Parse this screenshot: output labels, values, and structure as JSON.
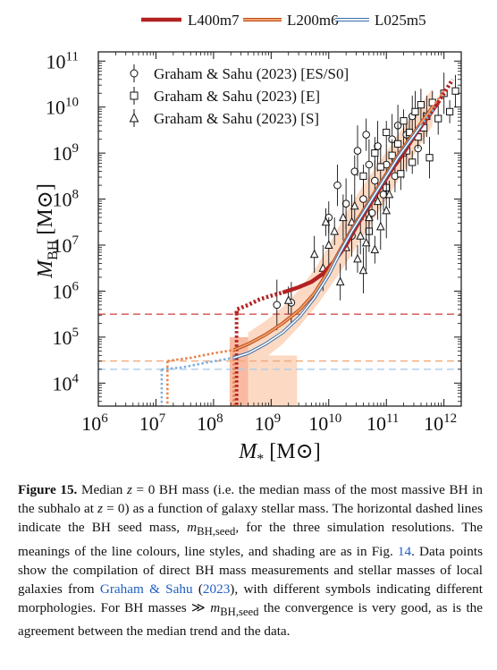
{
  "chart_data": {
    "type": "line",
    "xlabel_main": "M",
    "xlabel_sub": "*",
    "xlabel_unit": "[M",
    "xlabel_unit_end": "]",
    "ylabel_main": "M",
    "ylabel_sub": "BH",
    "ylabel_unit": "[M",
    "ylabel_unit_end": "]",
    "x_log": true,
    "y_log": true,
    "xlim": [
      6,
      12.3
    ],
    "ylim": [
      3.5,
      11.2
    ],
    "x_ticks": [
      6,
      7,
      8,
      9,
      10,
      11,
      12
    ],
    "y_ticks": [
      4,
      5,
      6,
      7,
      8,
      9,
      10,
      11
    ],
    "legend_top": [
      {
        "name": "L400m7",
        "color": "#b22222"
      },
      {
        "name": "L200m6",
        "color": "#e8824a"
      },
      {
        "name": "L025m5",
        "color": "#7fb0dc"
      }
    ],
    "legend_obs": [
      "Graham & Sahu (2023) [ES/S0]",
      "Graham & Sahu (2023) [E]",
      "Graham & Sahu (2023) [S]"
    ],
    "seed_masses_log": {
      "L400m7": 5.5,
      "L200m6": 4.48,
      "L025m5": 4.3
    },
    "series": [
      {
        "name": "L400m7",
        "color": "#b22222",
        "dotted": [
          [
            8.4,
            5.52
          ],
          [
            8.4,
            5.6
          ],
          [
            8.6,
            5.7
          ],
          [
            8.8,
            5.82
          ],
          [
            9.0,
            5.9
          ],
          [
            9.2,
            5.97
          ]
        ],
        "solid": [
          [
            9.2,
            5.97
          ],
          [
            9.45,
            6.07
          ],
          [
            9.7,
            6.2
          ],
          [
            9.9,
            6.38
          ],
          [
            10.1,
            6.65
          ],
          [
            10.3,
            7.0
          ],
          [
            10.5,
            7.45
          ],
          [
            10.7,
            7.85
          ],
          [
            10.9,
            8.25
          ],
          [
            11.1,
            8.65
          ],
          [
            11.3,
            9.0
          ],
          [
            11.5,
            9.4
          ],
          [
            11.7,
            9.75
          ],
          [
            11.9,
            10.1
          ]
        ],
        "dotted_end": [
          [
            11.9,
            10.1
          ],
          [
            12.05,
            10.4
          ],
          [
            12.15,
            10.6
          ]
        ]
      },
      {
        "name": "L200m6",
        "color": "#e8824a",
        "dotted": [
          [
            7.2,
            4.48
          ],
          [
            7.6,
            4.55
          ],
          [
            8.0,
            4.65
          ],
          [
            8.35,
            4.72
          ]
        ],
        "solid": [
          [
            8.35,
            4.72
          ],
          [
            8.6,
            4.85
          ],
          [
            8.9,
            5.05
          ],
          [
            9.2,
            5.3
          ],
          [
            9.5,
            5.6
          ],
          [
            9.75,
            5.95
          ],
          [
            10.0,
            6.45
          ],
          [
            10.2,
            6.9
          ],
          [
            10.4,
            7.35
          ],
          [
            10.6,
            7.75
          ],
          [
            10.8,
            8.15
          ],
          [
            11.0,
            8.55
          ],
          [
            11.2,
            8.95
          ],
          [
            11.4,
            9.3
          ],
          [
            11.6,
            9.65
          ],
          [
            11.8,
            10.0
          ]
        ],
        "dotted_end": [
          [
            11.8,
            10.0
          ],
          [
            12.0,
            10.35
          ]
        ]
      },
      {
        "name": "L025m5",
        "color": "#7fb0dc",
        "dotted": [
          [
            7.1,
            4.3
          ],
          [
            7.45,
            4.34
          ],
          [
            7.9,
            4.45
          ],
          [
            8.35,
            4.55
          ]
        ],
        "solid": [
          [
            8.35,
            4.55
          ],
          [
            8.6,
            4.65
          ],
          [
            8.9,
            4.85
          ],
          [
            9.2,
            5.1
          ],
          [
            9.5,
            5.45
          ],
          [
            9.75,
            5.85
          ],
          [
            10.0,
            6.35
          ],
          [
            10.2,
            6.85
          ],
          [
            10.4,
            7.3
          ],
          [
            10.6,
            7.7
          ],
          [
            10.8,
            8.1
          ],
          [
            11.0,
            8.5
          ],
          [
            11.2,
            8.9
          ],
          [
            11.4,
            9.25
          ],
          [
            11.6,
            9.6
          ]
        ],
        "dotted_end": [
          [
            11.6,
            9.6
          ],
          [
            11.85,
            10.0
          ]
        ]
      }
    ],
    "shaded_band": {
      "upper": [
        [
          8.6,
          5.1
        ],
        [
          8.9,
          5.35
        ],
        [
          9.2,
          5.65
        ],
        [
          9.5,
          6.05
        ],
        [
          9.8,
          6.55
        ],
        [
          10.0,
          7.0
        ],
        [
          10.3,
          7.7
        ],
        [
          10.6,
          8.3
        ],
        [
          10.9,
          8.85
        ],
        [
          11.2,
          9.4
        ],
        [
          11.5,
          9.9
        ],
        [
          11.8,
          10.4
        ]
      ],
      "lower": [
        [
          11.8,
          9.6
        ],
        [
          11.5,
          9.0
        ],
        [
          11.2,
          8.4
        ],
        [
          10.9,
          7.8
        ],
        [
          10.6,
          7.2
        ],
        [
          10.3,
          6.6
        ],
        [
          10.0,
          6.05
        ],
        [
          9.8,
          5.7
        ],
        [
          9.5,
          5.25
        ],
        [
          9.2,
          4.85
        ],
        [
          8.9,
          4.55
        ],
        [
          8.6,
          4.35
        ]
      ],
      "dark_box": {
        "x": [
          8.28,
          8.6
        ],
        "y": [
          3.5,
          5.0
        ]
      },
      "light_box": {
        "x": [
          8.6,
          9.45
        ],
        "y": [
          3.5,
          4.6
        ]
      }
    },
    "observations": {
      "ES_S0": [
        [
          10.0,
          7.6
        ],
        [
          10.15,
          8.3
        ],
        [
          10.3,
          7.9
        ],
        [
          10.45,
          8.6
        ],
        [
          10.6,
          8.0
        ],
        [
          10.7,
          8.75
        ],
        [
          10.75,
          7.7
        ],
        [
          10.8,
          8.4
        ],
        [
          10.85,
          9.15
        ],
        [
          10.95,
          8.1
        ],
        [
          11.0,
          8.75
        ],
        [
          11.1,
          9.3
        ],
        [
          11.15,
          8.5
        ],
        [
          11.2,
          9.6
        ],
        [
          11.3,
          9.0
        ],
        [
          11.35,
          9.4
        ],
        [
          11.45,
          9.8
        ],
        [
          10.5,
          9.05
        ],
        [
          10.65,
          9.4
        ],
        [
          9.35,
          5.75
        ],
        [
          9.1,
          5.7
        ],
        [
          11.55,
          9.1
        ],
        [
          10.4,
          7.2
        ]
      ],
      "E": [
        [
          10.6,
          8.5
        ],
        [
          10.8,
          9.0
        ],
        [
          10.9,
          8.7
        ],
        [
          11.0,
          9.45
        ],
        [
          11.1,
          8.95
        ],
        [
          11.2,
          9.2
        ],
        [
          11.3,
          9.7
        ],
        [
          11.4,
          9.45
        ],
        [
          11.5,
          9.9
        ],
        [
          11.55,
          9.35
        ],
        [
          11.6,
          10.05
        ],
        [
          11.7,
          9.8
        ],
        [
          11.8,
          10.1
        ],
        [
          11.9,
          9.75
        ],
        [
          12.0,
          10.3
        ],
        [
          12.1,
          9.9
        ],
        [
          12.2,
          10.35
        ],
        [
          11.35,
          9.05
        ],
        [
          11.45,
          8.8
        ],
        [
          11.65,
          9.55
        ],
        [
          10.7,
          7.3
        ],
        [
          11.0,
          8.25
        ],
        [
          11.25,
          8.55
        ],
        [
          11.75,
          8.9
        ]
      ],
      "S": [
        [
          9.3,
          5.8
        ],
        [
          9.75,
          6.8
        ],
        [
          9.9,
          6.5
        ],
        [
          10.0,
          7.0
        ],
        [
          10.1,
          7.3
        ],
        [
          10.2,
          6.2
        ],
        [
          10.3,
          6.95
        ],
        [
          10.4,
          7.5
        ],
        [
          10.5,
          6.7
        ],
        [
          10.55,
          7.2
        ],
        [
          10.6,
          6.45
        ],
        [
          10.7,
          7.6
        ],
        [
          10.8,
          6.9
        ],
        [
          10.85,
          7.95
        ],
        [
          10.9,
          7.4
        ],
        [
          11.0,
          7.75
        ],
        [
          11.05,
          8.1
        ],
        [
          10.45,
          7.85
        ],
        [
          10.25,
          7.6
        ],
        [
          10.65,
          7.05
        ],
        [
          9.95,
          7.5
        ]
      ]
    }
  },
  "caption": {
    "label": "Figure 15.",
    "t1": " Median ",
    "t2": "z",
    "t3": " = 0 BH mass (i.e. the median mass of the most massive BH in the subhalo at ",
    "t4": "z",
    "t5": " = 0) as a function of galaxy stellar mass. The horizontal dashed lines indicate the BH seed mass, ",
    "t6": "m",
    "t7": "BH,seed",
    "t8": ", for the three simulation resolutions. The meanings of the line colours, line styles, and shading are as in Fig. ",
    "t9": "14",
    "t10": ". Data points show the compilation of direct BH mass measurements and stellar masses of local galaxies from ",
    "t11": "Graham & Sahu",
    "t12": " (",
    "t13": "2023",
    "t14": "), with different symbols indicating different morphologies. For BH masses ≫ ",
    "t15": "m",
    "t16": "BH,seed",
    "t17": " the convergence is very good, as is the agreement between the median trend and the data."
  }
}
